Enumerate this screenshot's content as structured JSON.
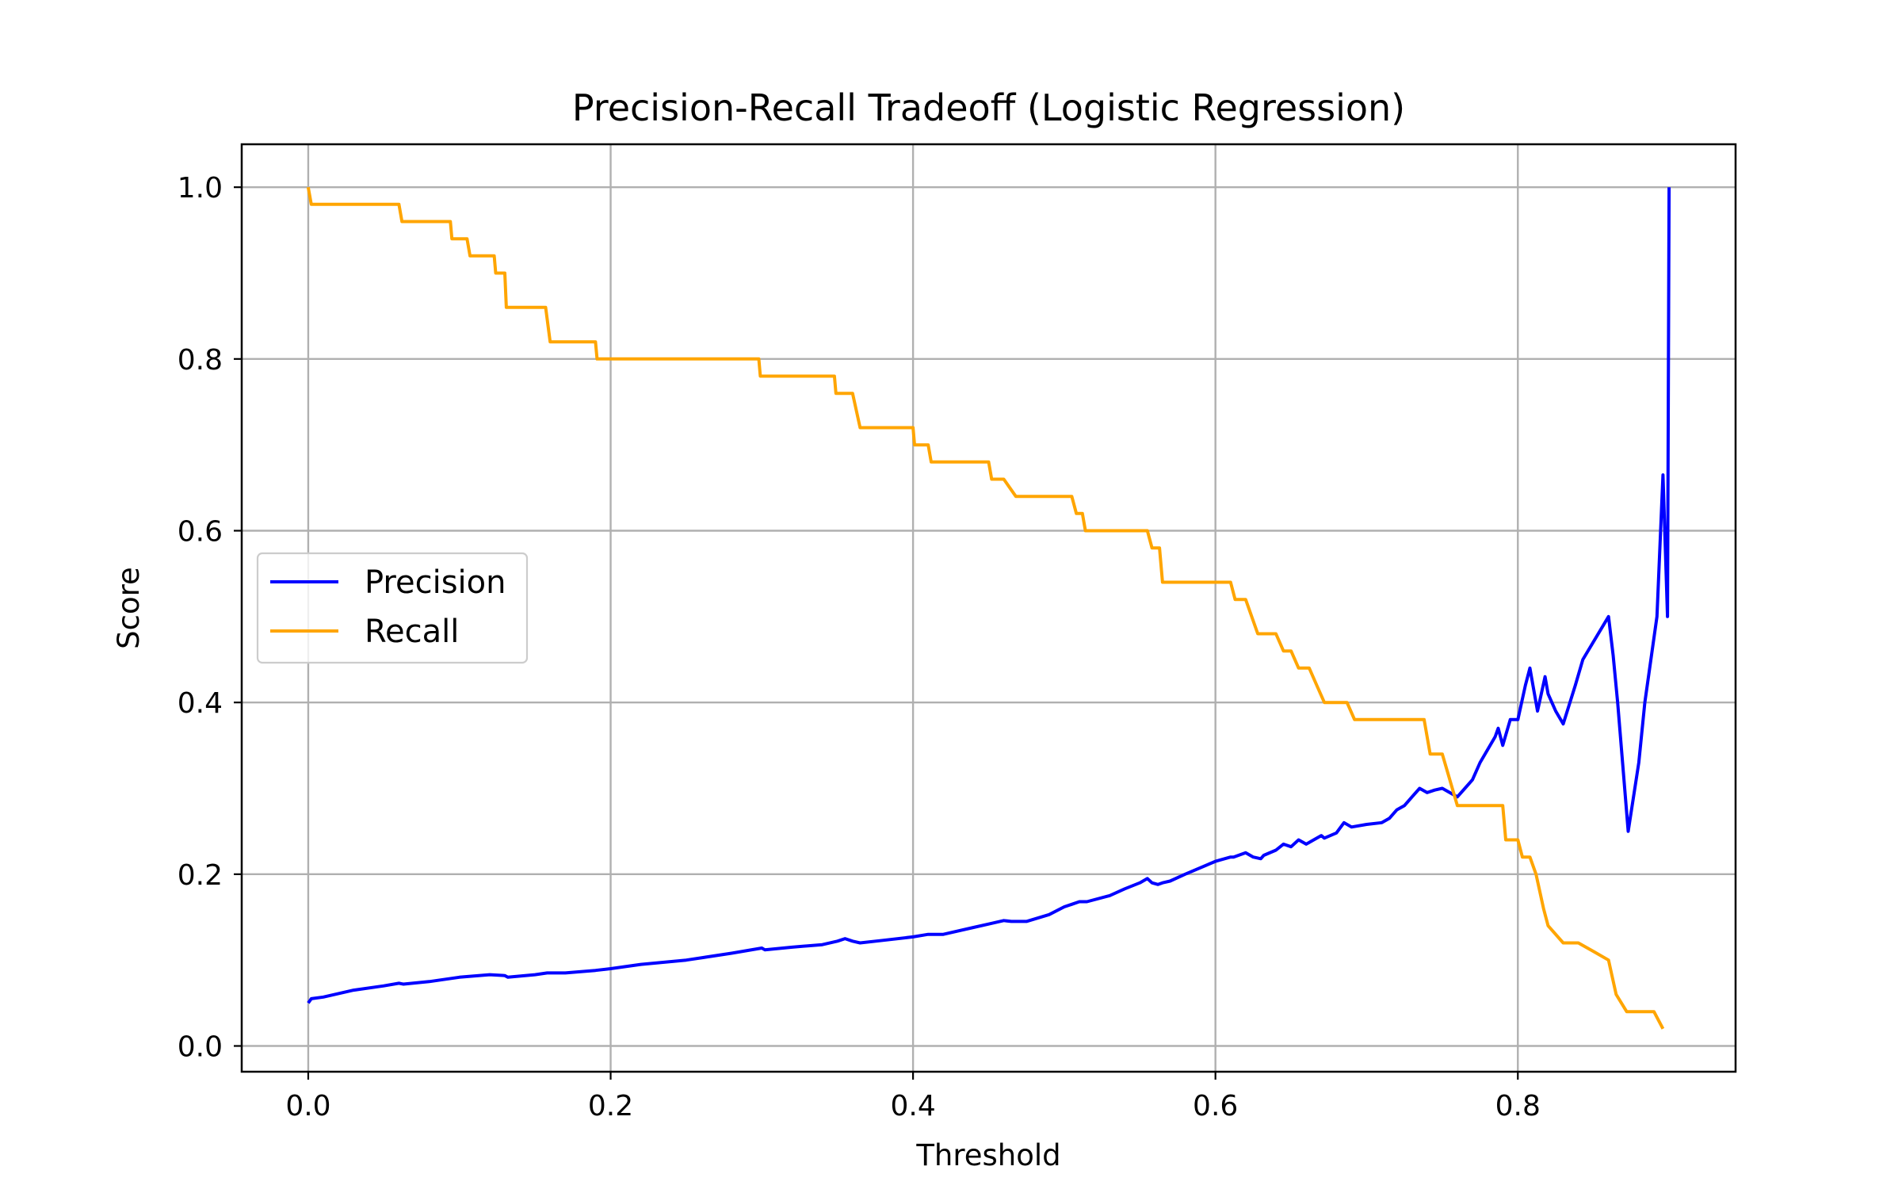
{
  "chart_data": {
    "type": "line",
    "title": "Precision-Recall Tradeoff (Logistic Regression)",
    "xlabel": "Threshold",
    "ylabel": "Score",
    "xlim": [
      -0.044,
      0.944
    ],
    "ylim": [
      -0.03,
      1.05
    ],
    "xticks": [
      0.0,
      0.2,
      0.4,
      0.6,
      0.8
    ],
    "xtick_labels": [
      "0.0",
      "0.2",
      "0.4",
      "0.6",
      "0.8"
    ],
    "yticks": [
      0.0,
      0.2,
      0.4,
      0.6,
      0.8,
      1.0
    ],
    "ytick_labels": [
      "0.0",
      "0.2",
      "0.4",
      "0.6",
      "0.8",
      "1.0"
    ],
    "grid": true,
    "legend_position": "center-left",
    "series": [
      {
        "name": "Precision",
        "color": "#0000ff",
        "x": [
          0.0,
          0.002,
          0.01,
          0.03,
          0.05,
          0.06,
          0.063,
          0.08,
          0.1,
          0.12,
          0.13,
          0.132,
          0.15,
          0.158,
          0.17,
          0.19,
          0.2,
          0.22,
          0.25,
          0.28,
          0.3,
          0.302,
          0.32,
          0.34,
          0.35,
          0.355,
          0.36,
          0.365,
          0.38,
          0.4,
          0.41,
          0.42,
          0.44,
          0.45,
          0.46,
          0.465,
          0.475,
          0.49,
          0.5,
          0.505,
          0.51,
          0.515,
          0.53,
          0.54,
          0.55,
          0.555,
          0.558,
          0.562,
          0.565,
          0.57,
          0.58,
          0.6,
          0.61,
          0.612,
          0.62,
          0.625,
          0.63,
          0.632,
          0.64,
          0.645,
          0.65,
          0.655,
          0.66,
          0.665,
          0.67,
          0.672,
          0.68,
          0.685,
          0.69,
          0.7,
          0.71,
          0.715,
          0.72,
          0.725,
          0.73,
          0.735,
          0.74,
          0.745,
          0.75,
          0.755,
          0.76,
          0.765,
          0.77,
          0.775,
          0.78,
          0.785,
          0.787,
          0.79,
          0.795,
          0.8,
          0.805,
          0.808,
          0.81,
          0.813,
          0.818,
          0.82,
          0.825,
          0.83,
          0.838,
          0.843,
          0.86,
          0.863,
          0.866,
          0.873,
          0.88,
          0.884,
          0.892,
          0.896,
          0.899,
          0.9
        ],
        "values": [
          0.05,
          0.055,
          0.057,
          0.065,
          0.07,
          0.073,
          0.072,
          0.075,
          0.08,
          0.083,
          0.082,
          0.08,
          0.083,
          0.085,
          0.085,
          0.088,
          0.09,
          0.095,
          0.1,
          0.108,
          0.114,
          0.112,
          0.115,
          0.118,
          0.122,
          0.125,
          0.122,
          0.12,
          0.123,
          0.127,
          0.13,
          0.13,
          0.138,
          0.142,
          0.146,
          0.145,
          0.145,
          0.153,
          0.162,
          0.165,
          0.168,
          0.168,
          0.175,
          0.183,
          0.19,
          0.195,
          0.19,
          0.188,
          0.19,
          0.192,
          0.2,
          0.215,
          0.22,
          0.22,
          0.225,
          0.22,
          0.218,
          0.222,
          0.228,
          0.235,
          0.232,
          0.24,
          0.235,
          0.24,
          0.245,
          0.242,
          0.248,
          0.26,
          0.255,
          0.258,
          0.26,
          0.265,
          0.275,
          0.28,
          0.29,
          0.3,
          0.295,
          0.298,
          0.3,
          0.295,
          0.29,
          0.3,
          0.31,
          0.33,
          0.345,
          0.36,
          0.37,
          0.35,
          0.38,
          0.38,
          0.42,
          0.44,
          0.42,
          0.39,
          0.43,
          0.41,
          0.39,
          0.375,
          0.42,
          0.45,
          0.5,
          0.455,
          0.4,
          0.25,
          0.33,
          0.4,
          0.5,
          0.665,
          0.5,
          1.0
        ]
      },
      {
        "name": "Recall",
        "color": "#ffa500",
        "x": [
          0.0,
          0.002,
          0.06,
          0.062,
          0.094,
          0.095,
          0.105,
          0.107,
          0.123,
          0.124,
          0.13,
          0.131,
          0.157,
          0.16,
          0.19,
          0.191,
          0.298,
          0.299,
          0.348,
          0.349,
          0.36,
          0.365,
          0.4,
          0.401,
          0.41,
          0.412,
          0.45,
          0.452,
          0.46,
          0.468,
          0.505,
          0.508,
          0.512,
          0.514,
          0.555,
          0.558,
          0.563,
          0.565,
          0.61,
          0.613,
          0.62,
          0.628,
          0.64,
          0.645,
          0.65,
          0.655,
          0.662,
          0.667,
          0.672,
          0.687,
          0.692,
          0.738,
          0.742,
          0.75,
          0.76,
          0.762,
          0.79,
          0.792,
          0.8,
          0.803,
          0.808,
          0.812,
          0.817,
          0.82,
          0.83,
          0.84,
          0.85,
          0.86,
          0.865,
          0.872,
          0.89,
          0.896
        ],
        "values": [
          1.0,
          0.98,
          0.98,
          0.96,
          0.96,
          0.94,
          0.94,
          0.92,
          0.92,
          0.9,
          0.9,
          0.86,
          0.86,
          0.82,
          0.82,
          0.8,
          0.8,
          0.78,
          0.78,
          0.76,
          0.76,
          0.72,
          0.72,
          0.7,
          0.7,
          0.68,
          0.68,
          0.66,
          0.66,
          0.64,
          0.64,
          0.62,
          0.62,
          0.6,
          0.6,
          0.58,
          0.58,
          0.54,
          0.54,
          0.52,
          0.52,
          0.48,
          0.48,
          0.46,
          0.46,
          0.44,
          0.44,
          0.42,
          0.4,
          0.4,
          0.38,
          0.38,
          0.34,
          0.34,
          0.28,
          0.28,
          0.28,
          0.24,
          0.24,
          0.22,
          0.22,
          0.2,
          0.16,
          0.14,
          0.12,
          0.12,
          0.11,
          0.1,
          0.06,
          0.04,
          0.04,
          0.02
        ]
      }
    ]
  }
}
